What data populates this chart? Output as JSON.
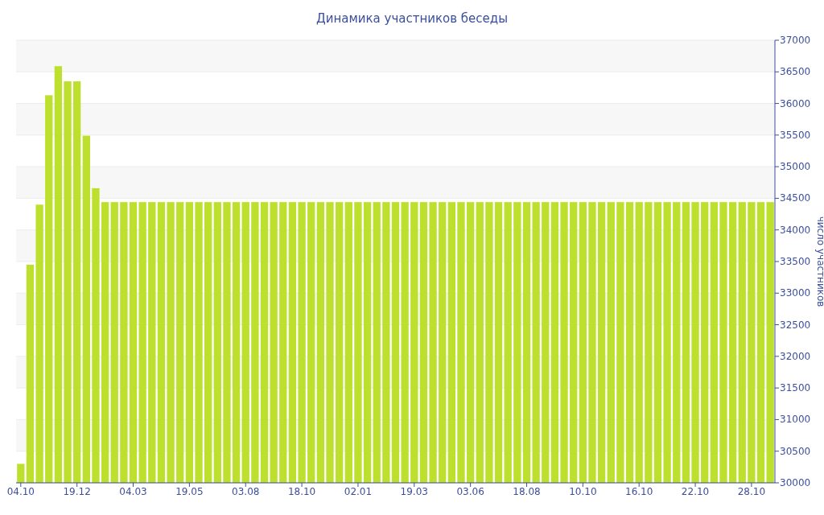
{
  "chart_data": {
    "type": "bar",
    "title": "Динамика участников беседы",
    "ylabel": "число участников",
    "categories": [
      "04.10",
      null,
      null,
      null,
      null,
      null,
      "19.12",
      null,
      null,
      null,
      null,
      null,
      "04.03",
      null,
      null,
      null,
      null,
      null,
      "19.05",
      null,
      null,
      null,
      null,
      null,
      "03.08",
      null,
      null,
      null,
      null,
      null,
      "18.10",
      null,
      null,
      null,
      null,
      null,
      "02.01",
      null,
      null,
      null,
      null,
      null,
      "19.03",
      null,
      null,
      null,
      null,
      null,
      "03.06",
      null,
      null,
      null,
      null,
      null,
      "18.08",
      null,
      null,
      null,
      null,
      null,
      "10.10",
      null,
      null,
      null,
      null,
      null,
      "16.10",
      null,
      null,
      null,
      null,
      null,
      "22.10",
      null,
      null,
      null,
      null,
      null,
      "28.10",
      null,
      null
    ],
    "values": [
      30300,
      33450,
      34400,
      36130,
      36590,
      36350,
      36350,
      35490,
      34660,
      34440,
      34440,
      34440,
      34440,
      34440,
      34440,
      34440,
      34440,
      34440,
      34440,
      34440,
      34440,
      34440,
      34440,
      34440,
      34440,
      34440,
      34440,
      34440,
      34440,
      34440,
      34440,
      34440,
      34440,
      34440,
      34440,
      34440,
      34440,
      34440,
      34440,
      34440,
      34440,
      34440,
      34440,
      34440,
      34440,
      34440,
      34440,
      34440,
      34440,
      34440,
      34440,
      34440,
      34440,
      34440,
      34440,
      34440,
      34440,
      34440,
      34440,
      34440,
      34440,
      34440,
      34440,
      34440,
      34440,
      34440,
      34440,
      34440,
      34440,
      34440,
      34440,
      34440,
      34440,
      34440,
      34440,
      34440,
      34440,
      34440,
      34440,
      34440,
      34440
    ],
    "color": "#bde02f",
    "ylim": [
      30000,
      37000
    ],
    "yticks": [
      30000,
      30500,
      31000,
      31500,
      32000,
      32500,
      33000,
      33500,
      34000,
      34500,
      35000,
      35500,
      36000,
      36500,
      37000
    ],
    "grid": true
  }
}
